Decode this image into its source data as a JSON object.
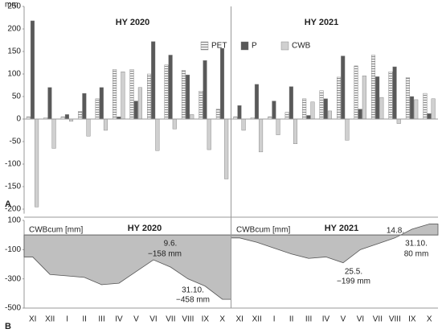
{
  "chart_data": [
    {
      "type": "bar",
      "unit": "mm",
      "title": "HY 2020",
      "subtitle": "HY 2021",
      "panel": "A",
      "ylim": [
        -210,
        250
      ],
      "yticks": [
        250,
        200,
        150,
        100,
        50,
        0,
        -50,
        -100,
        -150,
        -200
      ],
      "legend": "top",
      "series": [
        {
          "name": "PET",
          "color": "#8c8c8c",
          "pattern": "hatch",
          "values": [
            5,
            3,
            5,
            17,
            45,
            110,
            110,
            100,
            120,
            108,
            62,
            22,
            5,
            3,
            5,
            15,
            45,
            63,
            93,
            118,
            142,
            105,
            92,
            57
          ]
        },
        {
          "name": "P",
          "color": "#595959",
          "values": [
            218,
            70,
            10,
            57,
            70,
            5,
            40,
            172,
            142,
            98,
            130,
            157,
            30,
            77,
            40,
            72,
            8,
            45,
            140,
            22,
            94,
            116,
            50,
            12
          ]
        },
        {
          "name": "CWB",
          "color": "#d0d0d0",
          "values": [
            -195,
            -65,
            -5,
            -38,
            -25,
            105,
            70,
            -70,
            -22,
            10,
            -68,
            -133,
            -25,
            -73,
            -35,
            -55,
            38,
            18,
            -47,
            96,
            48,
            -10,
            43,
            45
          ]
        }
      ]
    },
    {
      "type": "area",
      "panel": "B",
      "ylabel": "CWBcum [mm]",
      "title": "HY 2020",
      "subtitle": "HY 2021",
      "categories": [
        "XI",
        "XII",
        "I",
        "II",
        "III",
        "IV",
        "V",
        "VI",
        "VII",
        "VIII",
        "IX",
        "X",
        "XI",
        "XII",
        "I",
        "II",
        "III",
        "IV",
        "V",
        "VI",
        "VII",
        "VIII",
        "IX",
        "X"
      ],
      "ylim": [
        -500,
        100
      ],
      "yticks": [
        100,
        -100,
        -300,
        -500
      ],
      "series": [
        {
          "name": "HY 2020",
          "color": "#bfbfbf",
          "values": [
            -150,
            -270,
            -280,
            -290,
            -340,
            -330,
            -250,
            -170,
            -220,
            -300,
            -350,
            -440,
            null,
            null,
            null,
            null,
            null,
            null,
            null,
            null,
            null,
            null,
            null,
            null
          ]
        },
        {
          "name": "HY 2021",
          "color": "#bfbfbf",
          "values": [
            null,
            null,
            null,
            null,
            null,
            null,
            null,
            null,
            null,
            null,
            null,
            null,
            -20,
            -50,
            -90,
            -130,
            -160,
            -150,
            -190,
            -100,
            -60,
            -20,
            40,
            75
          ]
        }
      ],
      "annotations": [
        "9.6.",
        "−158 mm",
        "31.10.",
        "−458 mm",
        "25.5.",
        "−199 mm",
        "14.8.",
        "31.10.",
        "80 mm"
      ]
    }
  ]
}
